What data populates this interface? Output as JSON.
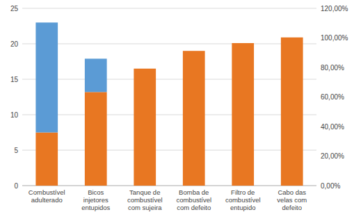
{
  "chart_data": {
    "type": "bar",
    "stacked": true,
    "grid": true,
    "categories": [
      "Combustível\nadulterado",
      "Bicos\ninjetores\nentupidos",
      "Tanque de\ncombustível\ncom sujeira",
      "Bomba de\ncombustível\ncom defeito",
      "Filtro de\ncombustível\nentupido",
      "Cabo das\nvelas com\ndefeito"
    ],
    "series": [
      {
        "color": "#E87722",
        "values": [
          7.5,
          13.2,
          16.5,
          19.0,
          20.1,
          20.9
        ]
      },
      {
        "color": "#5B9BD5",
        "values": [
          15.5,
          4.7,
          0.0,
          0.0,
          0.0,
          0.0
        ]
      }
    ],
    "ylim": [
      0,
      25
    ],
    "yticks": [
      0,
      5,
      10,
      15,
      20,
      25
    ],
    "y2lim": [
      0,
      1.2
    ],
    "y2ticks": [
      {
        "value": 0.0,
        "label": "0,00%"
      },
      {
        "value": 0.2,
        "label": "20,00%"
      },
      {
        "value": 0.4,
        "label": "40,00%"
      },
      {
        "value": 0.6,
        "label": "60,00%"
      },
      {
        "value": 0.8,
        "label": "80,00%"
      },
      {
        "value": 1.0,
        "label": "100,00%"
      },
      {
        "value": 1.2,
        "label": "120,00%"
      }
    ]
  }
}
